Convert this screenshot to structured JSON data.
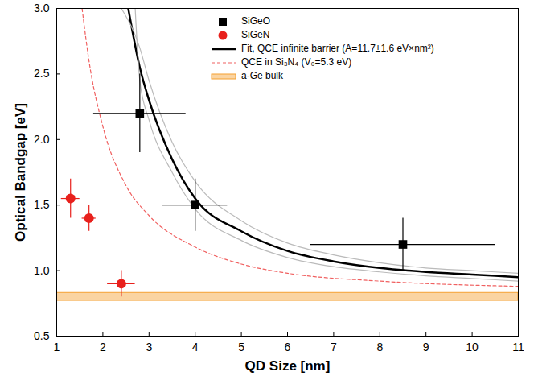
{
  "chart_data": {
    "type": "scatter",
    "x_label": "QD Size [nm]",
    "y_label": "Optical Bandgap [eV]",
    "xlim": [
      1,
      11
    ],
    "ylim": [
      0.5,
      3.0
    ],
    "xticks": [
      1,
      2,
      3,
      4,
      5,
      6,
      7,
      8,
      9,
      10,
      11
    ],
    "yticks": [
      0.5,
      {
        "value": 1,
        "label": "1.0"
      },
      1.5,
      {
        "value": 2,
        "label": "2.0"
      },
      2.5,
      {
        "value": 3,
        "label": "3.0"
      }
    ],
    "legend": "top",
    "series": [
      {
        "name": "SiGeO",
        "type": "scatter",
        "color": "#000000",
        "marker": "square",
        "x": [
          2.8,
          4.0,
          8.5
        ],
        "values": [
          2.2,
          1.5,
          1.2
        ],
        "x_error": [
          1.0,
          0.7,
          2.0
        ],
        "y_error": [
          0.3,
          0.2,
          0.2
        ]
      },
      {
        "name": "SiGeN",
        "type": "scatter",
        "color": "#e8201c",
        "marker": "circle",
        "x": [
          1.3,
          1.7,
          2.4
        ],
        "values": [
          1.55,
          1.4,
          0.9
        ],
        "x_error": [
          0.2,
          0.15,
          0.3
        ],
        "y_error": [
          0.15,
          0.1,
          0.1
        ]
      },
      {
        "name": "Fit, QCE infinite barrier (A=11.7±1.6 eV×nm²)",
        "type": "line",
        "color": "#000000",
        "line_style": "solid",
        "x": [
          2.55,
          2.8,
          3,
          3.5,
          4,
          5,
          6,
          7,
          8,
          9,
          10,
          11
        ],
        "values": [
          3.0,
          2.55,
          2.3,
          1.85,
          1.55,
          1.3,
          1.15,
          1.07,
          1.02,
          0.99,
          0.97,
          0.95
        ]
      },
      {
        "name": null,
        "type": "line",
        "color": "#bbbbbb",
        "line_style": "solid",
        "x": [
          2.4,
          2.8,
          3,
          3.5,
          4,
          5,
          6,
          7,
          8,
          9,
          10,
          11
        ],
        "values": [
          3.0,
          2.7,
          2.45,
          1.98,
          1.68,
          1.38,
          1.21,
          1.12,
          1.06,
          1.02,
          1.0,
          0.98
        ]
      },
      {
        "name": null,
        "type": "line",
        "color": "#bbbbbb",
        "line_style": "solid",
        "x": [
          2.7,
          2.8,
          3,
          3.5,
          4,
          5,
          6,
          7,
          8,
          9,
          10,
          11
        ],
        "values": [
          3.0,
          2.45,
          2.15,
          1.75,
          1.47,
          1.23,
          1.1,
          1.03,
          0.99,
          0.96,
          0.94,
          0.92
        ]
      },
      {
        "name": "QCE in Si₃N₄ (V₀=5.3 eV)",
        "type": "line",
        "color": "#f06060",
        "line_style": "dashed",
        "x": [
          1.55,
          1.7,
          2,
          2.5,
          3,
          4,
          5,
          6,
          8,
          11
        ],
        "values": [
          3.0,
          2.6,
          2.1,
          1.65,
          1.42,
          1.18,
          1.05,
          0.98,
          0.92,
          0.88
        ]
      },
      {
        "name": "a-Ge bulk",
        "type": "band",
        "color": "#f5a030",
        "ylow": 0.77,
        "yhigh": 0.83
      }
    ]
  }
}
